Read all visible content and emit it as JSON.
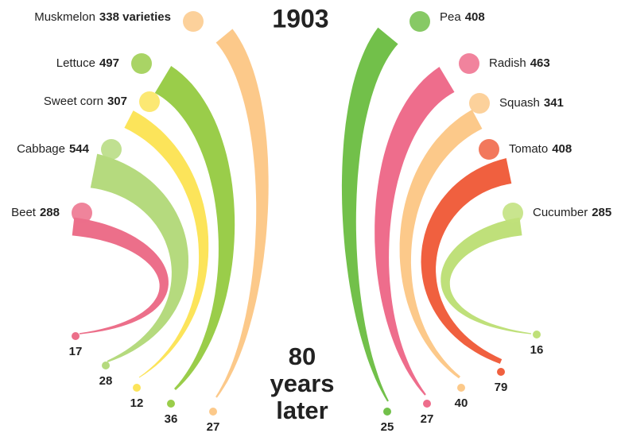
{
  "chart_data": {
    "type": "band",
    "categories": [
      "Muskmelon",
      "Lettuce",
      "Sweet corn",
      "Cabbage",
      "Beet",
      "Pea",
      "Radish",
      "Squash",
      "Tomato",
      "Cucumber"
    ],
    "colors": [
      "#fcc98a",
      "#9acd4a",
      "#fce45a",
      "#b5da7e",
      "#ec6f8a",
      "#72c04a",
      "#ee6d8c",
      "#fcc98a",
      "#f0603f",
      "#bfe07a"
    ],
    "series": [
      {
        "name": "1903",
        "values": [
          338,
          497,
          307,
          544,
          288,
          408,
          463,
          341,
          408,
          285
        ],
        "value_labels": [
          "338 varieties",
          "497",
          "307",
          "544",
          "288",
          "408",
          "463",
          "341",
          "408",
          "285"
        ]
      },
      {
        "name": "80 years later",
        "values": [
          27,
          36,
          12,
          28,
          17,
          25,
          27,
          40,
          79,
          16
        ]
      }
    ]
  }
}
